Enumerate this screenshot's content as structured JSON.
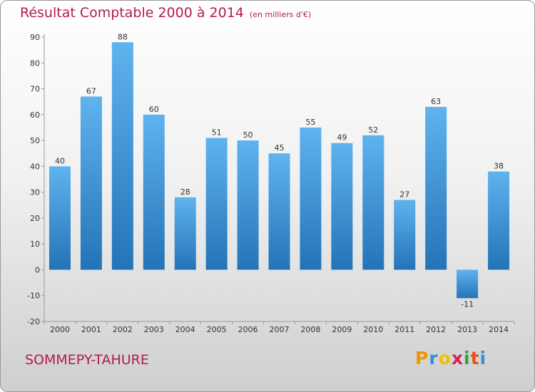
{
  "title": "Résultat Comptable 2000 à 2014",
  "unit_label": "(en milliers d'€)",
  "commune": "SOMMEPY-TAHURE",
  "logo": {
    "letters": [
      "P",
      "r",
      "o",
      "x",
      "i",
      "t",
      "i"
    ],
    "colors": [
      "#f29400",
      "#3a8ed1",
      "#f2c000",
      "#d81e5b",
      "#35a335",
      "#e8501a",
      "#3a8ed1"
    ]
  },
  "colors": {
    "bar_top": "#5fb3ee",
    "bar_bottom": "#2473b8",
    "title": "#b21d4e",
    "text": "#333333"
  },
  "chart_data": {
    "type": "bar",
    "title": "Résultat Comptable 2000 à 2014",
    "subtitle": "(en milliers d'€)",
    "categories": [
      "2000",
      "2001",
      "2002",
      "2003",
      "2004",
      "2005",
      "2006",
      "2007",
      "2008",
      "2009",
      "2010",
      "2011",
      "2012",
      "2013",
      "2014"
    ],
    "values": [
      40,
      67,
      88,
      60,
      28,
      51,
      50,
      45,
      55,
      49,
      52,
      27,
      63,
      -11,
      38
    ],
    "ylim": [
      -20,
      90
    ],
    "yticks": [
      -20,
      -10,
      0,
      10,
      20,
      30,
      40,
      50,
      60,
      70,
      80,
      90
    ],
    "grid": false,
    "data_labels": true
  }
}
